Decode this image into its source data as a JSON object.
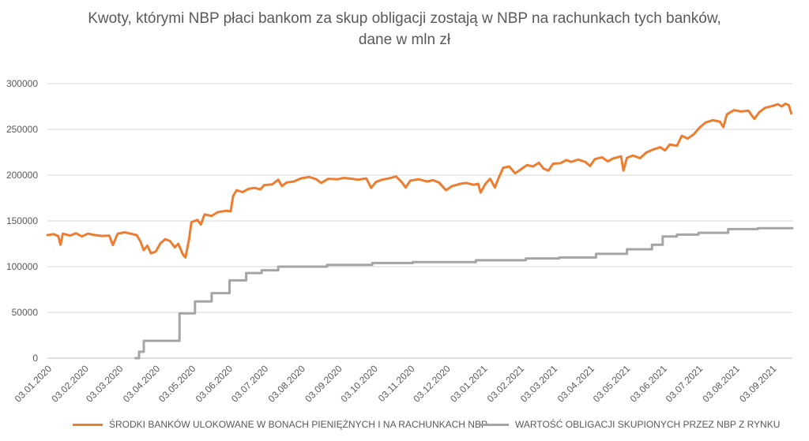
{
  "title_line1": "Kwoty, którymi NBP płaci bankom za skup obligacji zostają w NBP na rachunkach tych banków,",
  "title_line2": "dane w mln zł",
  "chart_data": {
    "type": "line",
    "title": "Kwoty, którymi NBP płaci bankom za skup obligacji zostają w NBP na rachunkach tych banków, dane w mln zł",
    "xlabel": "",
    "ylabel": "",
    "ylim": [
      0,
      300000
    ],
    "yticks": [
      0,
      50000,
      100000,
      150000,
      200000,
      250000,
      300000
    ],
    "ytick_labels": [
      "0",
      "50000",
      "100000",
      "150000",
      "200000",
      "250000",
      "300000"
    ],
    "x_range": [
      "2020-01-03",
      "2021-09-20"
    ],
    "xtick_labels": [
      "03.01.2020",
      "03.02.2020",
      "03.03.2020",
      "03.04.2020",
      "03.05.2020",
      "03.06.2020",
      "03.07.2020",
      "03.08.2020",
      "03.09.2020",
      "03.10.2020",
      "03.11.2020",
      "03.12.2020",
      "03.01.2021",
      "03.02.2021",
      "03.03.2021",
      "03.04.2021",
      "03.05.2021",
      "03.06.2021",
      "03.07.2021",
      "03.08.2021",
      "03.09.2021"
    ],
    "grid": "horizontal",
    "legend_position": "bottom",
    "series": [
      {
        "name": "ŚRODKI BANKÓW ULOKOWANE W BONACH PIENIĘŻNYCH I NA RACHUNKACH NBP",
        "color": "#ED7D31",
        "step": false,
        "points": [
          [
            "2020-01-03",
            134500
          ],
          [
            "2020-01-08",
            135500
          ],
          [
            "2020-01-12",
            133500
          ],
          [
            "2020-01-14",
            124000
          ],
          [
            "2020-01-16",
            136000
          ],
          [
            "2020-01-22",
            134000
          ],
          [
            "2020-01-27",
            136500
          ],
          [
            "2020-02-01",
            133000
          ],
          [
            "2020-02-06",
            136000
          ],
          [
            "2020-02-12",
            134500
          ],
          [
            "2020-02-18",
            133500
          ],
          [
            "2020-02-24",
            134000
          ],
          [
            "2020-02-27",
            123500
          ],
          [
            "2020-03-02",
            136000
          ],
          [
            "2020-03-08",
            137500
          ],
          [
            "2020-03-13",
            136000
          ],
          [
            "2020-03-18",
            134500
          ],
          [
            "2020-03-21",
            128000
          ],
          [
            "2020-03-24",
            118000
          ],
          [
            "2020-03-27",
            123000
          ],
          [
            "2020-03-30",
            114500
          ],
          [
            "2020-04-03",
            116500
          ],
          [
            "2020-04-07",
            125500
          ],
          [
            "2020-04-11",
            130000
          ],
          [
            "2020-04-15",
            128000
          ],
          [
            "2020-04-19",
            121000
          ],
          [
            "2020-04-22",
            125000
          ],
          [
            "2020-04-26",
            113000
          ],
          [
            "2020-04-28",
            110000
          ],
          [
            "2020-05-01",
            130000
          ],
          [
            "2020-05-03",
            148500
          ],
          [
            "2020-05-08",
            151000
          ],
          [
            "2020-05-11",
            146000
          ],
          [
            "2020-05-14",
            157000
          ],
          [
            "2020-05-20",
            155500
          ],
          [
            "2020-05-25",
            159500
          ],
          [
            "2020-06-01",
            161000
          ],
          [
            "2020-06-05",
            160500
          ],
          [
            "2020-06-07",
            177000
          ],
          [
            "2020-06-10",
            183500
          ],
          [
            "2020-06-15",
            181500
          ],
          [
            "2020-06-20",
            185000
          ],
          [
            "2020-06-25",
            186000
          ],
          [
            "2020-06-30",
            184500
          ],
          [
            "2020-07-03",
            189000
          ],
          [
            "2020-07-10",
            190000
          ],
          [
            "2020-07-15",
            195000
          ],
          [
            "2020-07-18",
            188000
          ],
          [
            "2020-07-22",
            192000
          ],
          [
            "2020-07-28",
            193000
          ],
          [
            "2020-08-03",
            196500
          ],
          [
            "2020-08-10",
            198000
          ],
          [
            "2020-08-16",
            195500
          ],
          [
            "2020-08-20",
            191500
          ],
          [
            "2020-08-26",
            196000
          ],
          [
            "2020-09-03",
            195500
          ],
          [
            "2020-09-08",
            197000
          ],
          [
            "2020-09-15",
            196000
          ],
          [
            "2020-09-20",
            195000
          ],
          [
            "2020-09-27",
            196500
          ],
          [
            "2020-10-01",
            186000
          ],
          [
            "2020-10-05",
            192500
          ],
          [
            "2020-10-10",
            195000
          ],
          [
            "2020-10-16",
            196500
          ],
          [
            "2020-10-22",
            198500
          ],
          [
            "2020-10-27",
            192000
          ],
          [
            "2020-10-30",
            186500
          ],
          [
            "2020-11-03",
            194000
          ],
          [
            "2020-11-10",
            195500
          ],
          [
            "2020-11-17",
            193000
          ],
          [
            "2020-11-22",
            194500
          ],
          [
            "2020-11-27",
            192000
          ],
          [
            "2020-12-03",
            183500
          ],
          [
            "2020-12-08",
            188000
          ],
          [
            "2020-12-15",
            190500
          ],
          [
            "2020-12-20",
            191500
          ],
          [
            "2020-12-26",
            189500
          ],
          [
            "2020-12-30",
            190500
          ],
          [
            "2021-01-01",
            181000
          ],
          [
            "2021-01-05",
            190500
          ],
          [
            "2021-01-09",
            196000
          ],
          [
            "2021-01-13",
            186500
          ],
          [
            "2021-01-16",
            196500
          ],
          [
            "2021-01-20",
            208000
          ],
          [
            "2021-01-25",
            209500
          ],
          [
            "2021-01-30",
            202000
          ],
          [
            "2021-02-04",
            206500
          ],
          [
            "2021-02-09",
            211000
          ],
          [
            "2021-02-14",
            209500
          ],
          [
            "2021-02-19",
            213500
          ],
          [
            "2021-02-23",
            207000
          ],
          [
            "2021-02-27",
            205000
          ],
          [
            "2021-03-03",
            212500
          ],
          [
            "2021-03-09",
            213000
          ],
          [
            "2021-03-14",
            216500
          ],
          [
            "2021-03-18",
            214500
          ],
          [
            "2021-03-24",
            217000
          ],
          [
            "2021-03-30",
            214500
          ],
          [
            "2021-04-03",
            210000
          ],
          [
            "2021-04-07",
            217500
          ],
          [
            "2021-04-13",
            219500
          ],
          [
            "2021-04-18",
            215000
          ],
          [
            "2021-04-22",
            218000
          ],
          [
            "2021-04-29",
            220500
          ],
          [
            "2021-05-01",
            205000
          ],
          [
            "2021-05-04",
            219000
          ],
          [
            "2021-05-09",
            221500
          ],
          [
            "2021-05-15",
            218500
          ],
          [
            "2021-05-20",
            224500
          ],
          [
            "2021-05-25",
            227500
          ],
          [
            "2021-06-01",
            230500
          ],
          [
            "2021-06-05",
            227000
          ],
          [
            "2021-06-09",
            233500
          ],
          [
            "2021-06-15",
            232000
          ],
          [
            "2021-06-19",
            243000
          ],
          [
            "2021-06-24",
            240000
          ],
          [
            "2021-06-29",
            244500
          ],
          [
            "2021-07-04",
            252000
          ],
          [
            "2021-07-09",
            257500
          ],
          [
            "2021-07-15",
            260000
          ],
          [
            "2021-07-21",
            258500
          ],
          [
            "2021-07-24",
            252500
          ],
          [
            "2021-07-27",
            266500
          ],
          [
            "2021-08-02",
            271000
          ],
          [
            "2021-08-08",
            269500
          ],
          [
            "2021-08-14",
            270500
          ],
          [
            "2021-08-19",
            261500
          ],
          [
            "2021-08-23",
            268500
          ],
          [
            "2021-08-28",
            273500
          ],
          [
            "2021-09-03",
            275500
          ],
          [
            "2021-09-08",
            277500
          ],
          [
            "2021-09-11",
            275000
          ],
          [
            "2021-09-14",
            278000
          ],
          [
            "2021-09-17",
            276500
          ],
          [
            "2021-09-19",
            267500
          ]
        ]
      },
      {
        "name": "WARTOŚĆ OBLIGACJI SKUPIONYCH PRZEZ NBP Z RYNKU",
        "color": "#A5A5A5",
        "step": true,
        "points": [
          [
            "2020-03-17",
            0
          ],
          [
            "2020-03-20",
            7000
          ],
          [
            "2020-03-24",
            19000
          ],
          [
            "2020-04-23",
            49000
          ],
          [
            "2020-05-06",
            62000
          ],
          [
            "2020-05-20",
            71000
          ],
          [
            "2020-06-04",
            85000
          ],
          [
            "2020-06-18",
            93000
          ],
          [
            "2020-07-01",
            96000
          ],
          [
            "2020-07-15",
            100000
          ],
          [
            "2020-08-25",
            102000
          ],
          [
            "2020-10-02",
            104000
          ],
          [
            "2020-11-05",
            105000
          ],
          [
            "2020-12-28",
            107000
          ],
          [
            "2021-02-08",
            109000
          ],
          [
            "2021-03-08",
            110000
          ],
          [
            "2021-04-08",
            114000
          ],
          [
            "2021-05-04",
            119000
          ],
          [
            "2021-05-25",
            124000
          ],
          [
            "2021-06-03",
            133000
          ],
          [
            "2021-06-15",
            135000
          ],
          [
            "2021-07-03",
            137000
          ],
          [
            "2021-07-28",
            141000
          ],
          [
            "2021-08-22",
            142000
          ],
          [
            "2021-09-20",
            142000
          ]
        ]
      }
    ]
  }
}
